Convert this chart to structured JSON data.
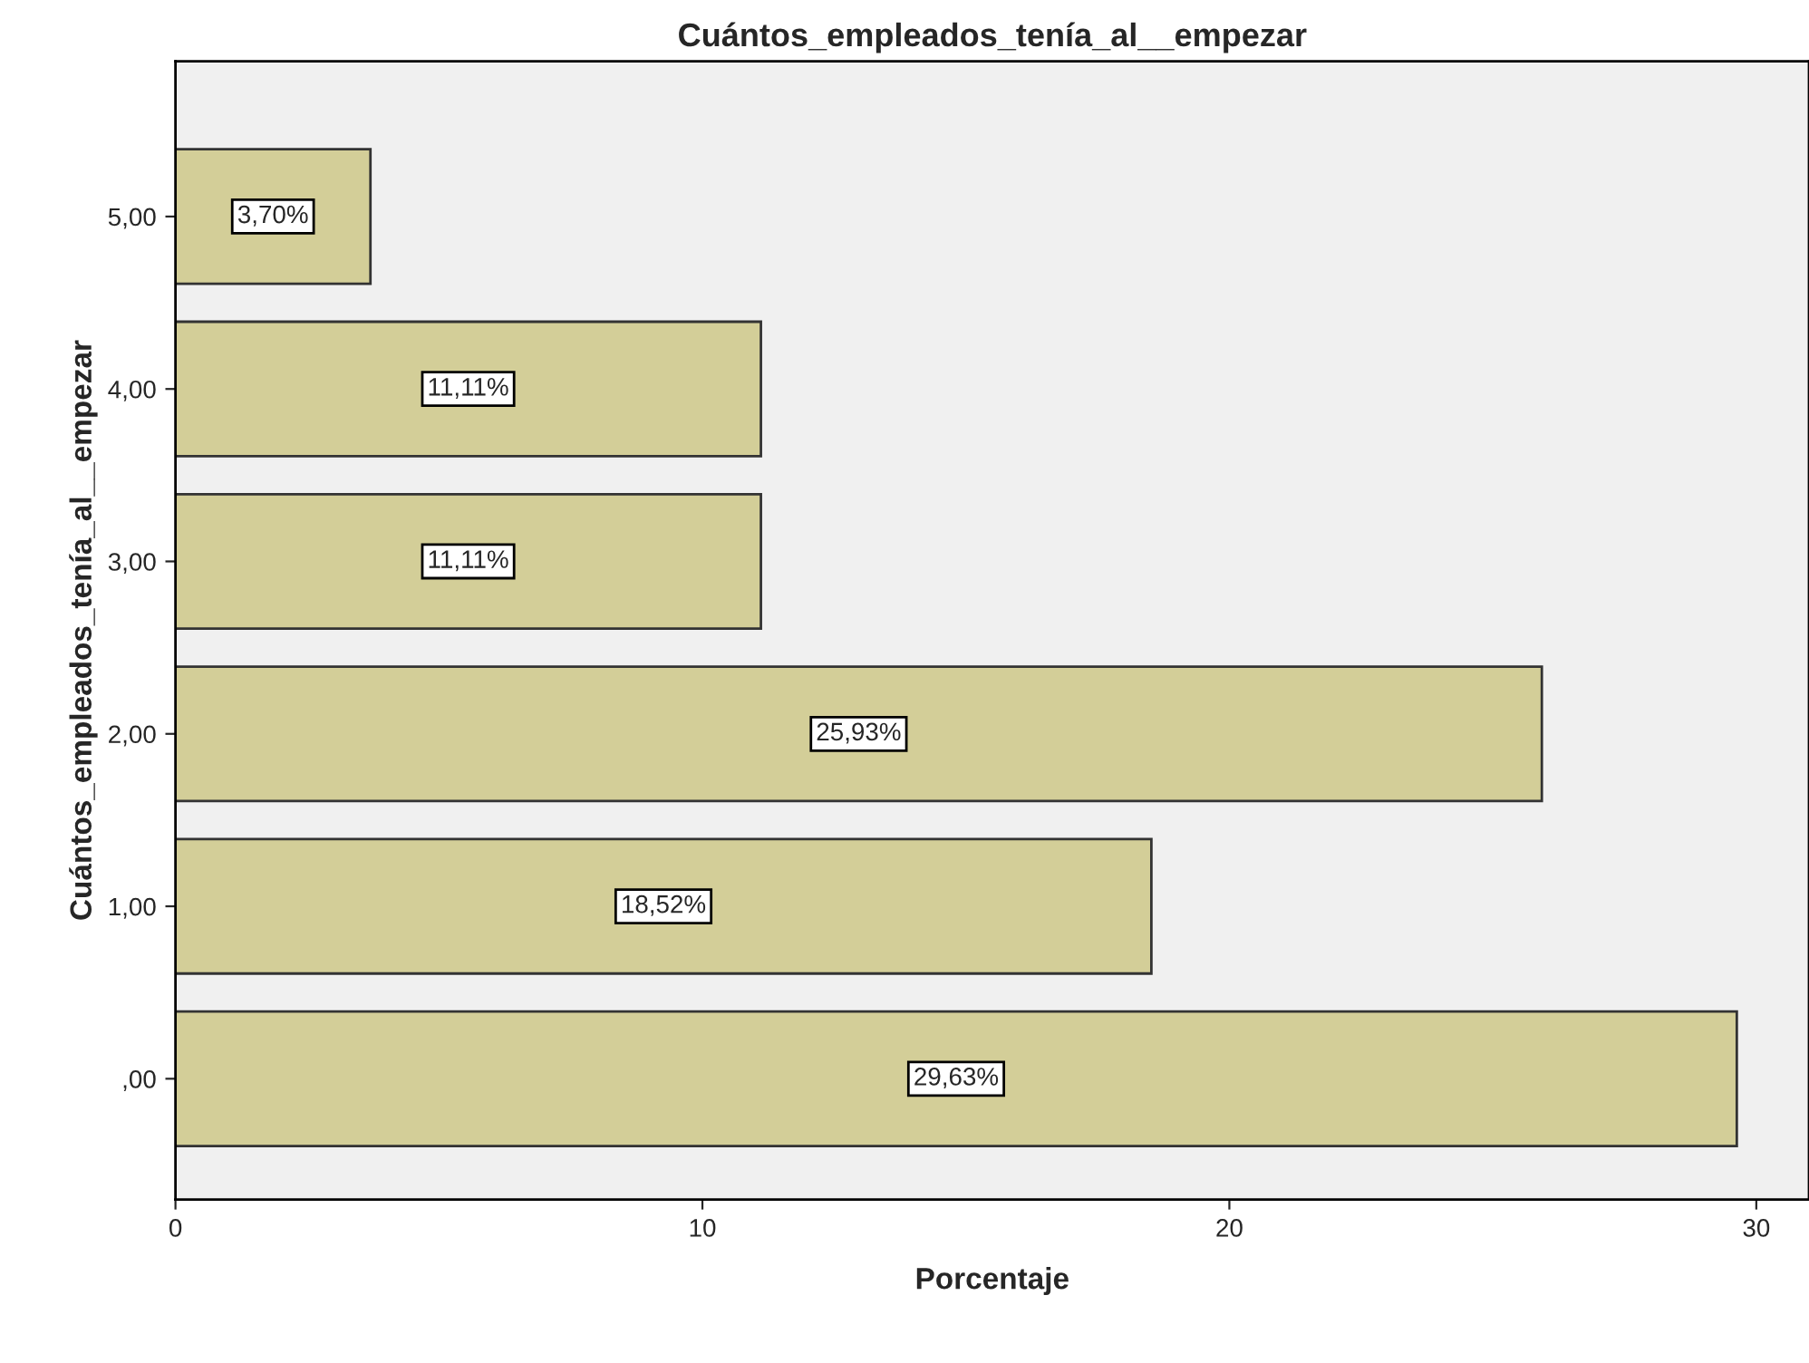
{
  "chart_data": {
    "type": "bar",
    "orientation": "horizontal",
    "title": "Cuántos_empleados_tenía_al__empezar",
    "xlabel": "Porcentaje",
    "ylabel": "Cuántos_empleados_tenía_al__empezar",
    "categories": [
      "5,00",
      "4,00",
      "3,00",
      "2,00",
      "1,00",
      ",00"
    ],
    "values": [
      3.7,
      11.11,
      11.11,
      25.93,
      18.52,
      29.63
    ],
    "value_labels": [
      "3,70%",
      "11,11%",
      "11,11%",
      "25,93%",
      "18,52%",
      "29,63%"
    ],
    "color": "#d3ce98",
    "xlim": [
      0,
      31
    ],
    "xticks": [
      0,
      10,
      20,
      30
    ],
    "grid": false,
    "legend": false
  }
}
